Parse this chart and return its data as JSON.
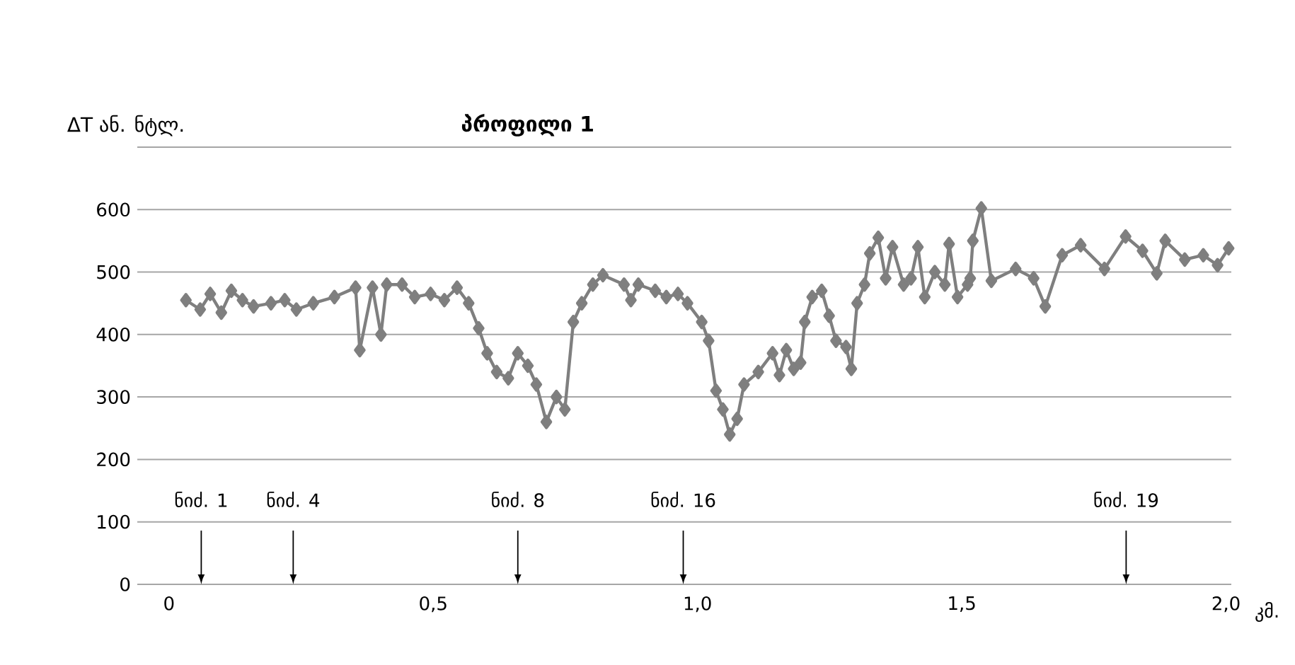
{
  "chart_data": {
    "type": "line",
    "title": "პროფილი 1",
    "ylabel": "ΔT ან. ნტლ.",
    "xlabel": "კმ.",
    "x": [
      0.032,
      0.059,
      0.078,
      0.099,
      0.118,
      0.139,
      0.16,
      0.193,
      0.219,
      0.241,
      0.273,
      0.313,
      0.353,
      0.361,
      0.385,
      0.401,
      0.412,
      0.441,
      0.465,
      0.495,
      0.521,
      0.545,
      0.567,
      0.586,
      0.602,
      0.62,
      0.642,
      0.66,
      0.679,
      0.695,
      0.714,
      0.733,
      0.749,
      0.765,
      0.781,
      0.802,
      0.821,
      0.861,
      0.874,
      0.888,
      0.92,
      0.941,
      0.963,
      0.981,
      1.008,
      1.021,
      1.035,
      1.048,
      1.061,
      1.075,
      1.088,
      1.115,
      1.142,
      1.155,
      1.168,
      1.182,
      1.195,
      1.203,
      1.217,
      1.235,
      1.249,
      1.262,
      1.281,
      1.291,
      1.302,
      1.316,
      1.326,
      1.342,
      1.356,
      1.369,
      1.39,
      1.404,
      1.417,
      1.43,
      1.449,
      1.468,
      1.476,
      1.492,
      1.511,
      1.516,
      1.521,
      1.537,
      1.556,
      1.602,
      1.636,
      1.658,
      1.69,
      1.725,
      1.77,
      1.81,
      1.842,
      1.869,
      1.885,
      1.922,
      1.957,
      1.984,
      2.005
    ],
    "series": [
      {
        "color": "#7f7f7f",
        "values": [
          455,
          440,
          465,
          435,
          470,
          455,
          445,
          450,
          455,
          440,
          450,
          460,
          475,
          375,
          475,
          400,
          480,
          480,
          460,
          465,
          455,
          475,
          450,
          410,
          370,
          340,
          330,
          370,
          350,
          320,
          260,
          300,
          280,
          420,
          450,
          480,
          495,
          480,
          455,
          480,
          470,
          460,
          465,
          450,
          420,
          390,
          310,
          280,
          240,
          265,
          320,
          340,
          370,
          335,
          375,
          345,
          355,
          420,
          460,
          470,
          430,
          390,
          380,
          345,
          450,
          480,
          530,
          555,
          490,
          540,
          480,
          490,
          540,
          460,
          500,
          480,
          545,
          460,
          480,
          490,
          550,
          602,
          486,
          505,
          490,
          445,
          527,
          543,
          505,
          557,
          534,
          498,
          550,
          520,
          527,
          511,
          538
        ]
      }
    ],
    "xlim": [
      -0.06,
      2.01
    ],
    "xticks": [
      0,
      {
        "value": 0.5,
        "label": "0,5"
      },
      {
        "value": 1.0,
        "label": "1,0"
      },
      {
        "value": 1.5,
        "label": "1,5"
      },
      {
        "value": 2.0,
        "label": "2,0"
      }
    ],
    "ylim": [
      0,
      700
    ],
    "yticks": [
      0,
      100,
      200,
      300,
      400,
      500,
      600,
      {
        "value": 700,
        "label": null
      }
    ],
    "grid": "y",
    "marker": "diamond",
    "line_style": "solid",
    "ref_lines": [
      {
        "axis": "x",
        "value": 0.061,
        "label": "ნიძ. 1"
      },
      {
        "axis": "x",
        "value": 0.235,
        "label": "ნიძ. 4"
      },
      {
        "axis": "x",
        "value": 0.66,
        "label": "ნიძ. 8"
      },
      {
        "axis": "x",
        "value": 0.973,
        "label": "ნიძ. 16"
      },
      {
        "axis": "x",
        "value": 1.811,
        "label": "ნიძ. 19"
      }
    ]
  }
}
